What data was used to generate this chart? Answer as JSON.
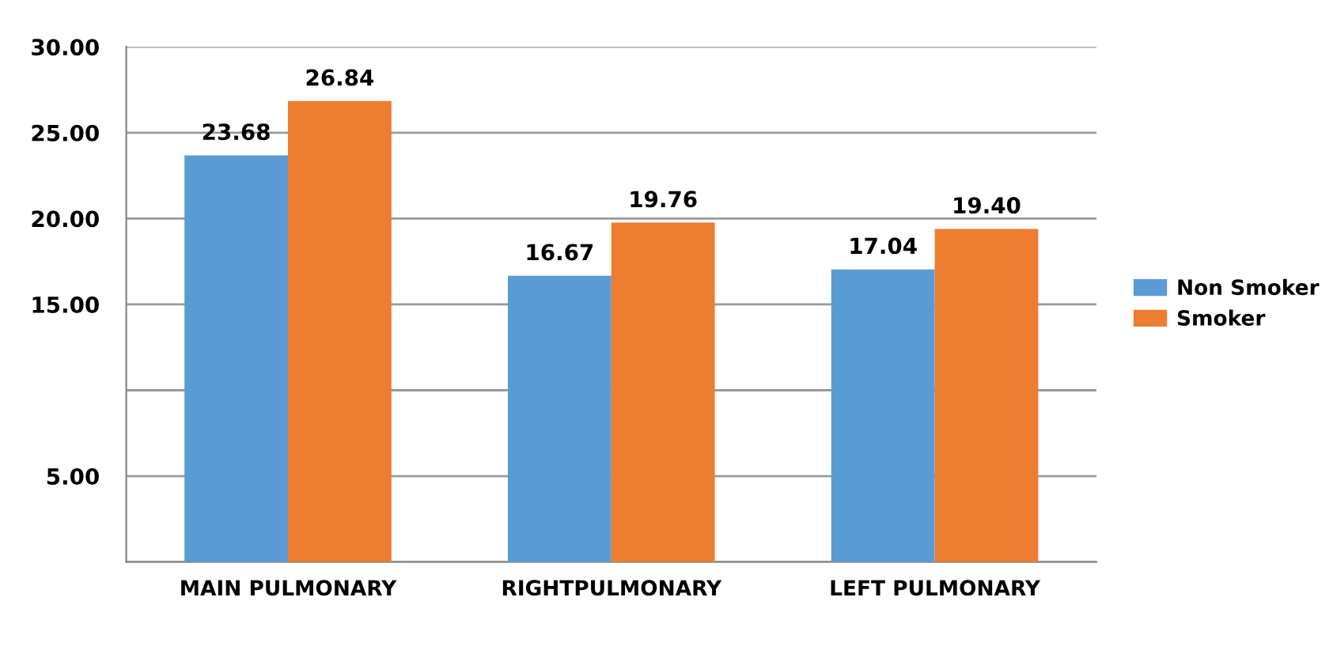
{
  "chart_data": {
    "type": "bar",
    "categories": [
      "MAIN PULMONARY",
      "RIGHTPULMONARY",
      "LEFT PULMONARY"
    ],
    "series": [
      {
        "name": "Non Smoker",
        "color": "#5b9bd5",
        "values": [
          23.68,
          16.67,
          17.04
        ],
        "value_labels": [
          "23.68",
          "16.67",
          "17.04"
        ]
      },
      {
        "name": "Smoker",
        "color": "#ed7d31",
        "values": [
          26.84,
          19.76,
          19.4
        ],
        "value_labels": [
          "26.84",
          "19.76",
          "19.40"
        ]
      }
    ],
    "ylim": [
      0,
      30
    ],
    "yticks": [
      {
        "value": 0,
        "label": null
      },
      {
        "value": 5,
        "label": "5.00"
      },
      {
        "value": 10,
        "label": null
      },
      {
        "value": 15,
        "label": "15.00"
      },
      {
        "value": 20,
        "label": "20.00"
      },
      {
        "value": 25,
        "label": "25.00"
      },
      {
        "value": 30,
        "label": "30.00"
      }
    ],
    "grid": "y",
    "legend": "right"
  }
}
